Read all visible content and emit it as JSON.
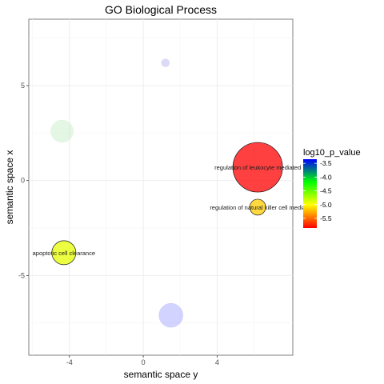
{
  "chart_data": {
    "type": "scatter",
    "title": "GO Biological Process",
    "xlabel": "semantic space y",
    "ylabel": "semantic space x",
    "xlim": [
      -6.2,
      8.1
    ],
    "ylim": [
      -9.2,
      8.5
    ],
    "x_ticks": [
      -4,
      0,
      4
    ],
    "y_ticks": [
      -5,
      0,
      5
    ],
    "x_tick_labels": [
      "-4",
      "0",
      "4"
    ],
    "y_tick_labels": [
      "-5",
      "0",
      "5"
    ],
    "grid": true,
    "legend": {
      "title": "log10_p_value",
      "placement": "right",
      "ticks": [
        -3.5,
        -4.0,
        -4.5,
        -5.0,
        -5.5
      ],
      "tick_labels": [
        "-3.5",
        "-4.0",
        "-4.5",
        "-5.0",
        "-5.5"
      ],
      "range": [
        -5.85,
        -3.35
      ],
      "colors": [
        "#0000ff",
        "#00ff00",
        "#ffff00",
        "#ff0000"
      ]
    },
    "points": [
      {
        "x": 6.2,
        "y": 0.7,
        "log10_p_value": -5.85,
        "size": 3.1,
        "color": "#ff0000",
        "opacity": 0.75,
        "highlight": true,
        "label": "regulation of leukocyte mediated"
      },
      {
        "x": 6.2,
        "y": -1.4,
        "log10_p_value": -5.4,
        "size": 1.0,
        "color": "#ffcc00",
        "opacity": 0.75,
        "highlight": true,
        "label": "regulation of natural killer cell media"
      },
      {
        "x": -4.3,
        "y": -3.8,
        "log10_p_value": -5.0,
        "size": 1.5,
        "color": "#e5ff00",
        "opacity": 0.75,
        "highlight": true,
        "label": "apoptotic cell clearance"
      },
      {
        "x": -4.4,
        "y": 2.6,
        "log10_p_value": -4.0,
        "size": 1.4,
        "color": "#b3e6b3",
        "opacity": 0.35,
        "highlight": false,
        "label": ""
      },
      {
        "x": 1.2,
        "y": 6.2,
        "log10_p_value": -3.4,
        "size": 0.5,
        "color": "#9999e6",
        "opacity": 0.35,
        "highlight": false,
        "label": ""
      },
      {
        "x": 1.5,
        "y": -7.1,
        "log10_p_value": -3.5,
        "size": 1.5,
        "color": "#8080ff",
        "opacity": 0.35,
        "highlight": false,
        "label": ""
      }
    ]
  }
}
